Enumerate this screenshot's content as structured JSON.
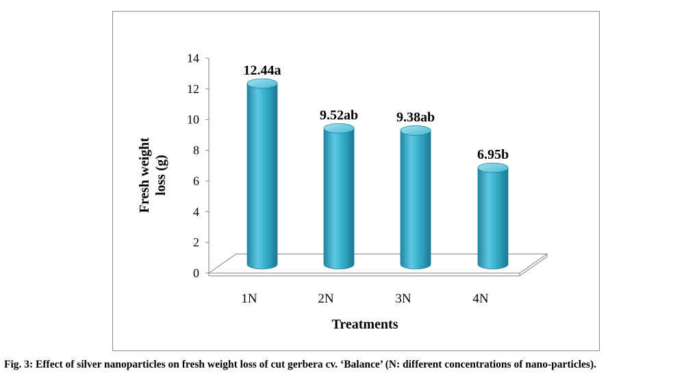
{
  "chart_data": {
    "type": "bar",
    "style": "3d-cylinder",
    "categories": [
      "1N",
      "2N",
      "3N",
      "4N"
    ],
    "values": [
      12.44,
      9.52,
      9.38,
      6.95
    ],
    "data_labels": [
      "12.44a",
      "9.52ab",
      "9.38ab",
      "6.95b"
    ],
    "xlabel": "Treatments",
    "ylabel_lines": [
      "Fresh weight",
      "loss (g)"
    ],
    "ylim": [
      0,
      14
    ],
    "yticks": [
      0,
      2,
      4,
      6,
      8,
      10,
      12,
      14
    ],
    "grid": false,
    "legend": "none",
    "colors": {
      "bar": "#31a9c6",
      "bar_dark": "#1d7f99",
      "bar_light": "#8fd6e8"
    }
  },
  "caption": "Fig. 3: Effect of silver nanoparticles on fresh weight loss of cut gerbera cv. ‘Balance’ (N: different concentrations of nano-particles)."
}
